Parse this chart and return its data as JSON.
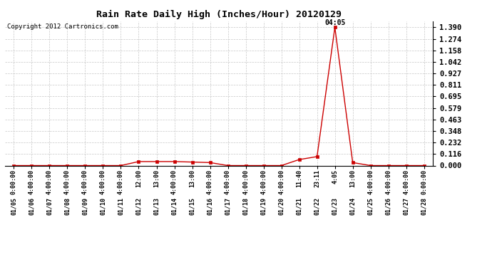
{
  "title": "Rain Rate Daily High (Inches/Hour) 20120129",
  "copyright": "Copyright 2012 Cartronics.com",
  "peak_label": "04:05",
  "line_color": "#cc0000",
  "marker_color": "#cc0000",
  "background_color": "#ffffff",
  "grid_color": "#c8c8c8",
  "yticks": [
    0.0,
    0.116,
    0.232,
    0.348,
    0.463,
    0.579,
    0.695,
    0.811,
    0.927,
    1.042,
    1.158,
    1.274,
    1.39
  ],
  "ylim": [
    0,
    1.45
  ],
  "x_dates": [
    "01/05",
    "01/06",
    "01/07",
    "01/08",
    "01/09",
    "01/10",
    "01/11",
    "01/12",
    "01/13",
    "01/14",
    "01/15",
    "01/16",
    "01/17",
    "01/18",
    "01/19",
    "01/20",
    "01/21",
    "01/22",
    "01/23",
    "01/24",
    "01/25",
    "01/26",
    "01/27",
    "01/28"
  ],
  "x_times": [
    "0:00:00",
    "4:00:00",
    "4:00:00",
    "4:00:00",
    "4:00:00",
    "4:00:00",
    "4:00:00",
    "12:00",
    "13:00",
    "4:00:00",
    "13:00",
    "4:00:00",
    "4:00:00",
    "4:00:00",
    "4:00:00",
    "4:00:00",
    "11:40",
    "23:11",
    "4:05",
    "13:00",
    "4:00:00",
    "4:00:00",
    "4:00:00",
    "0:00:00"
  ],
  "y_values": [
    0.0,
    0.0,
    0.0,
    0.0,
    0.0,
    0.0,
    0.0,
    0.04,
    0.04,
    0.04,
    0.035,
    0.03,
    0.0,
    0.0,
    0.0,
    0.0,
    0.06,
    0.09,
    1.39,
    0.03,
    0.0,
    0.0,
    0.0,
    0.0
  ],
  "fig_width": 6.9,
  "fig_height": 3.75,
  "dpi": 100
}
